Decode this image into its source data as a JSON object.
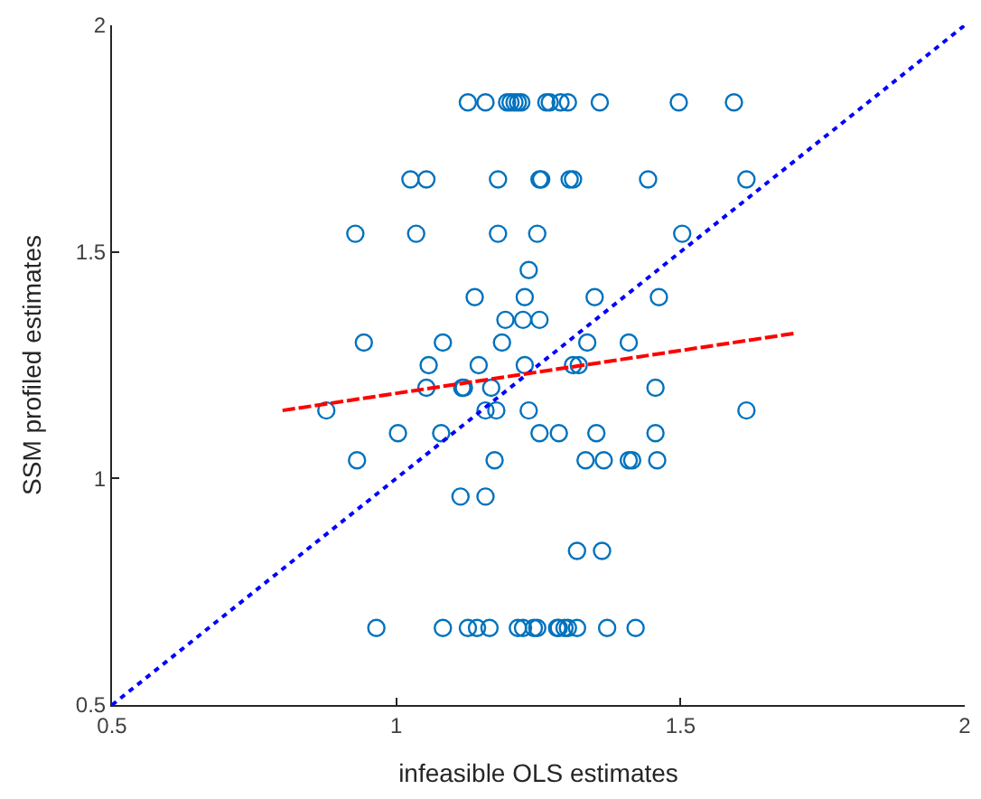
{
  "chart_data": {
    "type": "scatter",
    "xlabel": "infeasible OLS estimates",
    "ylabel": "SSM profiled estimates",
    "xlim": [
      0.5,
      2
    ],
    "ylim": [
      0.5,
      2
    ],
    "xticks": [
      0.5,
      1,
      1.5,
      2
    ],
    "yticks": [
      0.5,
      1,
      1.5,
      2
    ],
    "series": [
      {
        "color": "#0072bd",
        "marker": "circle",
        "x": [
          1.126,
          1.157,
          1.195,
          1.201,
          1.208,
          1.214,
          1.22,
          1.264,
          1.27,
          1.289,
          1.302,
          1.358,
          1.497,
          1.594,
          1.025,
          1.053,
          1.179,
          1.252,
          1.255,
          1.305,
          1.311,
          1.443,
          1.616,
          0.928,
          1.035,
          1.179,
          1.248,
          1.503,
          1.233,
          1.138,
          1.226,
          1.349,
          1.462,
          1.192,
          1.223,
          1.252,
          0.943,
          1.082,
          1.186,
          1.336,
          1.409,
          1.057,
          1.145,
          1.226,
          1.311,
          1.321,
          1.053,
          1.116,
          1.119,
          1.167,
          1.456,
          0.877,
          1.157,
          1.176,
          1.233,
          1.616,
          1.003,
          1.079,
          1.252,
          1.286,
          1.352,
          1.456,
          0.931,
          1.173,
          1.333,
          1.365,
          1.409,
          1.415,
          1.459,
          1.113,
          1.157,
          1.318,
          1.362,
          0.965,
          1.082,
          1.126,
          1.142,
          1.164,
          1.214,
          1.223,
          1.242,
          1.248,
          1.283,
          1.286,
          1.296,
          1.302,
          1.318,
          1.371,
          1.421
        ],
        "values": [
          1.83,
          1.83,
          1.83,
          1.83,
          1.83,
          1.83,
          1.83,
          1.83,
          1.83,
          1.83,
          1.83,
          1.83,
          1.83,
          1.83,
          1.66,
          1.66,
          1.66,
          1.66,
          1.66,
          1.66,
          1.66,
          1.66,
          1.66,
          1.54,
          1.54,
          1.54,
          1.54,
          1.54,
          1.46,
          1.4,
          1.4,
          1.4,
          1.4,
          1.35,
          1.35,
          1.35,
          1.3,
          1.3,
          1.3,
          1.3,
          1.3,
          1.25,
          1.25,
          1.25,
          1.25,
          1.25,
          1.2,
          1.2,
          1.2,
          1.2,
          1.2,
          1.15,
          1.15,
          1.15,
          1.15,
          1.15,
          1.1,
          1.1,
          1.1,
          1.1,
          1.1,
          1.1,
          1.04,
          1.04,
          1.04,
          1.04,
          1.04,
          1.04,
          1.04,
          0.96,
          0.96,
          0.84,
          0.84,
          0.67,
          0.67,
          0.67,
          0.67,
          0.67,
          0.67,
          0.67,
          0.67,
          0.67,
          0.67,
          0.67,
          0.67,
          0.67,
          0.67,
          0.67,
          0.67
        ]
      },
      {
        "type": "line",
        "color": "#0000ff",
        "line_style": "dotted",
        "x": [
          0.5,
          2
        ],
        "values": [
          0.5,
          2
        ]
      },
      {
        "type": "line",
        "color": "#ff0000",
        "line_style": "dashed",
        "x": [
          0.8,
          1.7
        ],
        "values": [
          1.15,
          1.32
        ]
      }
    ]
  }
}
